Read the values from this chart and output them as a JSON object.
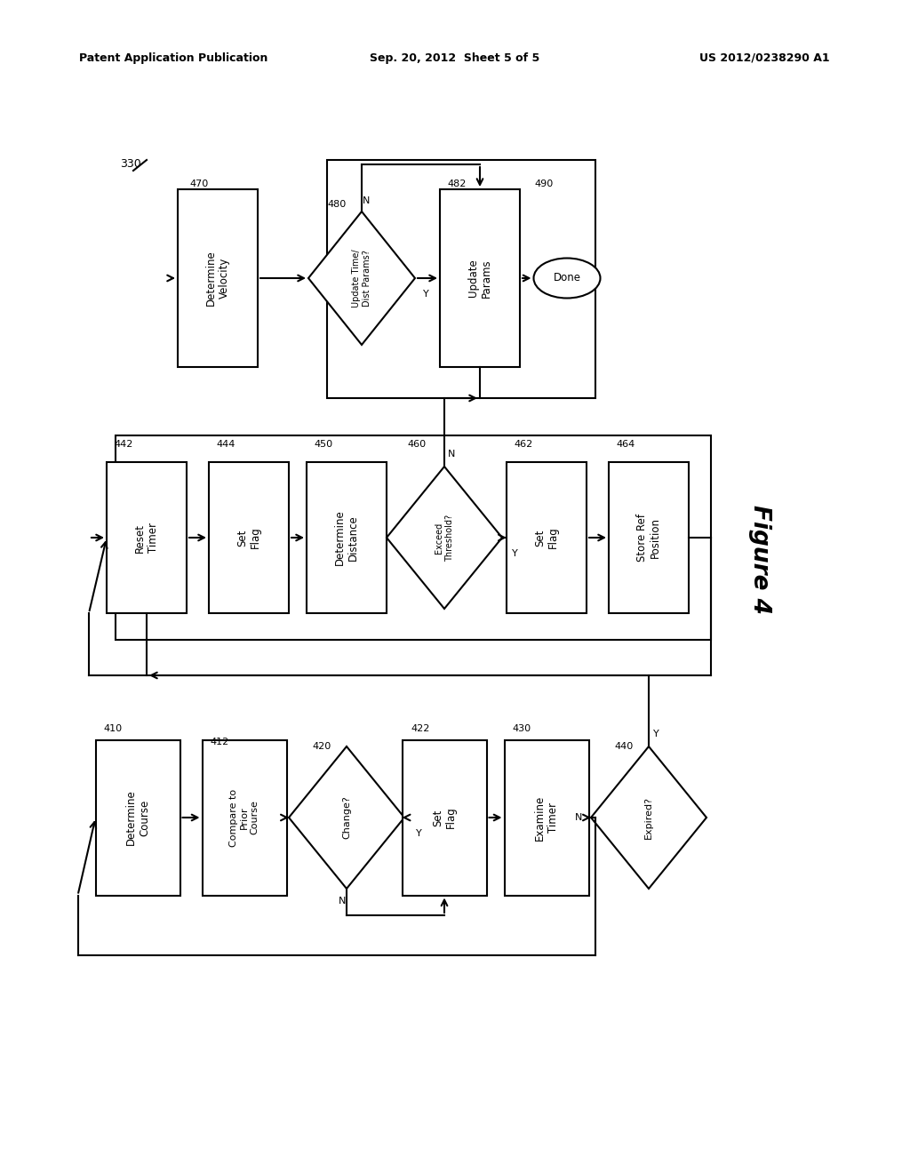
{
  "title_left": "Patent Application Publication",
  "title_center": "Sep. 20, 2012  Sheet 5 of 5",
  "title_right": "US 2012/0238290 A1",
  "figure_label": "Figure 4",
  "bg_color": "#ffffff",
  "line_color": "#000000",
  "text_color": "#000000"
}
